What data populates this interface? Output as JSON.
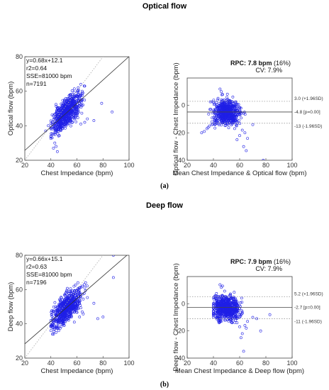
{
  "headings": {
    "top": "Optical flow",
    "bottom": "Deep flow",
    "label_a": "(a)",
    "label_b": "(b)"
  },
  "colors": {
    "points": "#1f1fe6",
    "fit_line": "#333333",
    "identity_line": "#aaaaaa",
    "sd_line": "#999999"
  },
  "chart_data": [
    {
      "id": "corr_a",
      "type": "scatter",
      "xlabel": "Chest Impedance (bpm)",
      "ylabel": "Optical flow (bpm)",
      "xlim": [
        20,
        100
      ],
      "ylim": [
        20,
        80
      ],
      "xticks": [
        20,
        40,
        60,
        80,
        100
      ],
      "yticks": [
        20,
        40,
        60,
        80
      ],
      "fit": {
        "slope": 0.68,
        "intercept": 12.1
      },
      "identity_line": true,
      "stats": [
        "y=0.68x+12.1",
        "r2=0.64",
        "SSE=81000 bpm",
        "n=7191"
      ],
      "cluster": {
        "x_range": [
          40,
          68
        ],
        "y_range": [
          24,
          64
        ],
        "center": [
          52,
          48
        ]
      },
      "points": [
        [
          45,
          25
        ],
        [
          42,
          27
        ],
        [
          43,
          30
        ],
        [
          44,
          28
        ],
        [
          41,
          33
        ],
        [
          42,
          35
        ],
        [
          58,
          44
        ],
        [
          60,
          46
        ],
        [
          63,
          41
        ],
        [
          66,
          42
        ],
        [
          68,
          44
        ],
        [
          73,
          43
        ],
        [
          79,
          53
        ],
        [
          87,
          48
        ],
        [
          36,
          37
        ],
        [
          38,
          40
        ],
        [
          61,
          62
        ],
        [
          63,
          64
        ],
        [
          64,
          60
        ],
        [
          66,
          63
        ]
      ]
    },
    {
      "id": "ba_a",
      "type": "scatter",
      "xlabel": "Mean Chest Impedance & Optical flow (bpm)",
      "ylabel": "Optical flow - Chest Impedance (bpm)",
      "xlim": [
        20,
        100
      ],
      "ylim": [
        -40,
        20
      ],
      "xticks": [
        20,
        40,
        60,
        80,
        100
      ],
      "yticks": [
        -40,
        -20,
        0
      ],
      "rpc": "RPC: 7.8 bpm",
      "rpc_pct": "(16%)",
      "cv": "CV: 7.9%",
      "mean": -4.8,
      "upper": 3.0,
      "lower": -13,
      "mean_label": "-4.8 [p=0.00]",
      "upper_label": "3.0 (+1.96SD)",
      "lower_label": "-13 (-1.96SD)",
      "cluster": {
        "x_range": [
          35,
          66
        ],
        "y_range": [
          -22,
          12
        ],
        "center": [
          50,
          -5
        ]
      },
      "points": [
        [
          31,
          -20
        ],
        [
          33,
          -19
        ],
        [
          35,
          -17
        ],
        [
          37,
          -15
        ],
        [
          39,
          -14
        ],
        [
          36,
          -16
        ],
        [
          45,
          12
        ],
        [
          46,
          10
        ],
        [
          47,
          8
        ],
        [
          58,
          -25
        ],
        [
          60,
          -22
        ],
        [
          62,
          -18
        ],
        [
          63,
          -30
        ],
        [
          65,
          -33
        ],
        [
          70,
          -14
        ],
        [
          78,
          -40
        ],
        [
          64,
          -20
        ],
        [
          66,
          -24
        ]
      ]
    },
    {
      "id": "corr_b",
      "type": "scatter",
      "xlabel": "Chest Impedance (bpm)",
      "ylabel": "Deep flow (bpm)",
      "xlim": [
        20,
        100
      ],
      "ylim": [
        20,
        80
      ],
      "xticks": [
        20,
        40,
        60,
        80,
        100
      ],
      "yticks": [
        20,
        40,
        60,
        80
      ],
      "fit": {
        "slope": 0.66,
        "intercept": 15.1
      },
      "identity_line": true,
      "stats": [
        "y=0.66x+15.1",
        "r2=0.63",
        "SSE=81000 bpm",
        "n=7196"
      ],
      "cluster": {
        "x_range": [
          40,
          68
        ],
        "y_range": [
          34,
          64
        ],
        "center": [
          52,
          50
        ]
      },
      "points": [
        [
          42,
          34
        ],
        [
          44,
          35
        ],
        [
          43,
          37
        ],
        [
          46,
          36
        ],
        [
          45,
          38
        ],
        [
          58,
          41
        ],
        [
          62,
          44
        ],
        [
          64,
          47
        ],
        [
          73,
          52
        ],
        [
          76,
          43
        ],
        [
          80,
          44
        ],
        [
          88,
          67
        ],
        [
          88,
          80
        ],
        [
          64,
          62
        ],
        [
          66,
          61
        ]
      ]
    },
    {
      "id": "ba_b",
      "type": "scatter",
      "xlabel": "Mean Chest Impedance & Deep flow (bpm)",
      "ylabel": "Deep flow - Chest Impedance (bpm)",
      "xlim": [
        20,
        100
      ],
      "ylim": [
        -40,
        20
      ],
      "xticks": [
        20,
        40,
        60,
        80,
        100
      ],
      "yticks": [
        -40,
        -20,
        0
      ],
      "rpc": "RPC: 7.9 bpm",
      "rpc_pct": "(16%)",
      "cv": "CV: 7.9%",
      "mean": -2.7,
      "upper": 5.2,
      "lower": -11,
      "mean_label": "-2.7 [p=0.00]",
      "upper_label": "5.2 (+1.96SD)",
      "lower_label": "-11 (-1.96SD)",
      "cluster": {
        "x_range": [
          40,
          65
        ],
        "y_range": [
          -14,
          12
        ],
        "center": [
          50,
          -3
        ]
      },
      "points": [
        [
          45,
          14
        ],
        [
          47,
          13
        ],
        [
          46,
          12
        ],
        [
          58,
          -14
        ],
        [
          60,
          -17
        ],
        [
          62,
          -22
        ],
        [
          63,
          -35
        ],
        [
          61,
          -25
        ],
        [
          65,
          -18
        ],
        [
          70,
          -10
        ],
        [
          73,
          -11
        ],
        [
          76,
          -20
        ],
        [
          83,
          -8
        ],
        [
          64,
          -16
        ],
        [
          66,
          -13
        ]
      ]
    }
  ]
}
